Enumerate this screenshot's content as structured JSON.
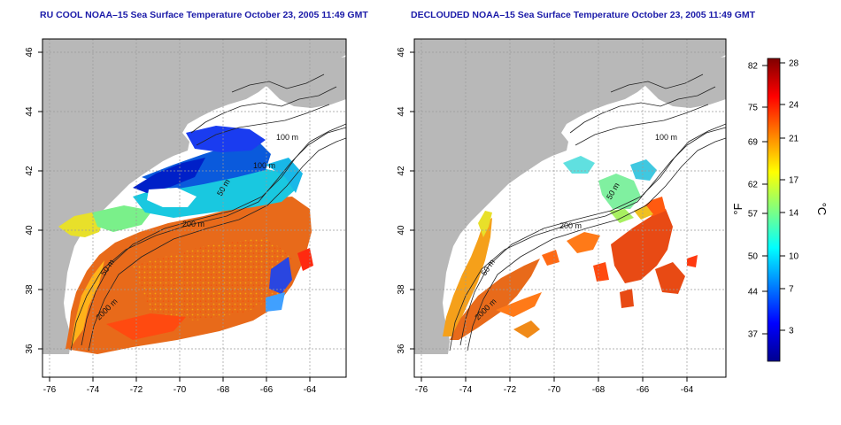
{
  "panels": [
    {
      "title": "RU COOL NOAA–15 Sea Surface Temperature October 23, 2005 11:49 GMT",
      "x_ticks": [
        "-76",
        "-74",
        "-72",
        "-70",
        "-68",
        "-66",
        "-64"
      ],
      "y_ticks": [
        "36",
        "38",
        "40",
        "42",
        "44",
        "46"
      ],
      "contour_labels": [
        "100 m",
        "100 m",
        "50 m",
        "200 m",
        "50 m",
        "2000 m"
      ]
    },
    {
      "title": "DECLOUDED NOAA–15 Sea Surface Temperature October 23, 2005 11:49 GMT",
      "x_ticks": [
        "-76",
        "-74",
        "-72",
        "-70",
        "-68",
        "-66",
        "-64"
      ],
      "y_ticks": [
        "36",
        "38",
        "40",
        "42",
        "44",
        "46"
      ],
      "contour_labels": [
        "100 m",
        "50 m",
        "200 m",
        "50 m",
        "2000 m"
      ]
    }
  ],
  "colorbar": {
    "fahrenheit_ticks": [
      "82",
      "75",
      "69",
      "62",
      "57",
      "50",
      "44",
      "37"
    ],
    "celsius_ticks": [
      "28",
      "24",
      "21",
      "17",
      "14",
      "10",
      "7",
      "3"
    ],
    "fahrenheit_label": "°F",
    "celsius_label": "°C",
    "colors": [
      "#00008f",
      "#0000ff",
      "#0080ff",
      "#00ffff",
      "#80ff80",
      "#ffff00",
      "#ff8000",
      "#ff0000",
      "#800000"
    ]
  },
  "land_color": "#b8b8b8",
  "title_color": "#1a1aa8"
}
